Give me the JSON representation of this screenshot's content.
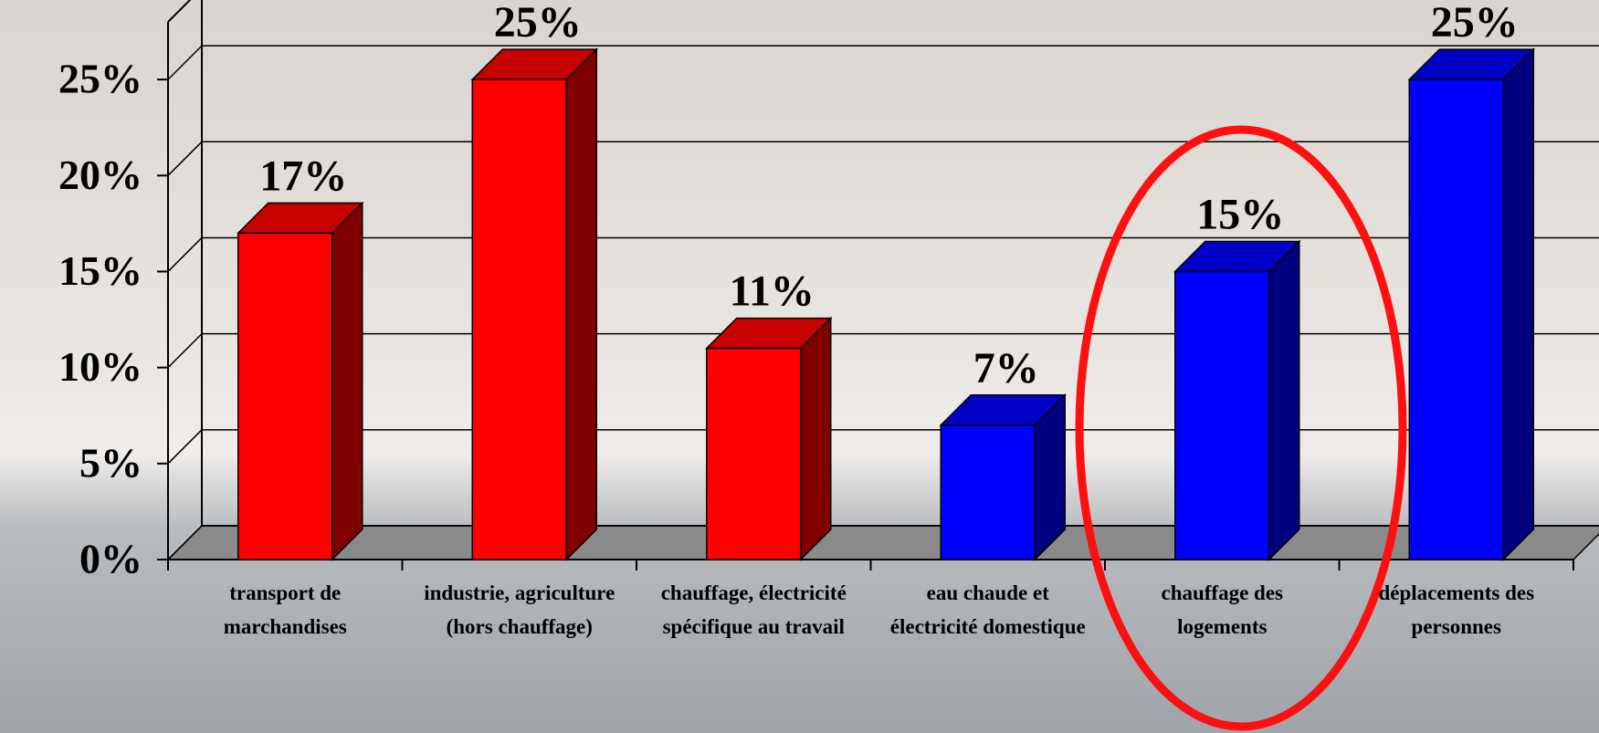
{
  "chart_data": {
    "type": "bar3d",
    "categories": [
      "transport de marchandises",
      "industrie, agriculture (hors chauffage)",
      "chauffage, électricité spécifique au travail",
      "eau chaude et électricité domestique",
      "chauffage des logements",
      "déplacements des personnes"
    ],
    "values": [
      17,
      25,
      11,
      7,
      15,
      25
    ],
    "value_labels": [
      "17%",
      "25%",
      "11%",
      "7%",
      "15%",
      "25%"
    ],
    "colors": [
      "#ff0000",
      "#ff0000",
      "#ff0000",
      "#0000ff",
      "#0000ff",
      "#0000ff"
    ],
    "ylim": [
      0,
      28
    ],
    "yticks": [
      {
        "value": 0,
        "label": "0%"
      },
      {
        "value": 5,
        "label": "5%"
      },
      {
        "value": 10,
        "label": "10%"
      },
      {
        "value": 15,
        "label": "15%"
      },
      {
        "value": 20,
        "label": "20%"
      },
      {
        "value": 25,
        "label": "25%"
      }
    ],
    "grid": true
  }
}
